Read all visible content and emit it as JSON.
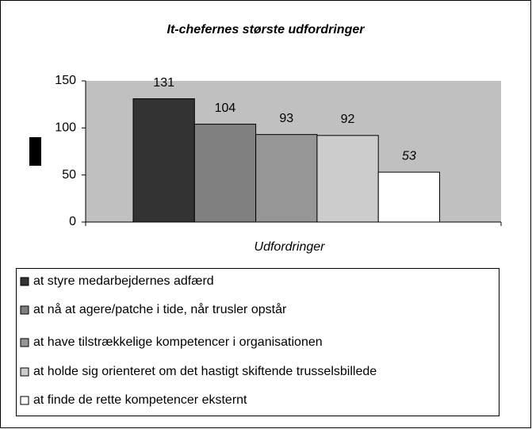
{
  "chart_data": {
    "type": "bar",
    "title": "It-chefernes største udfordringer",
    "x_label": "Udfordringer",
    "series": [
      {
        "name": "at styre medarbejdernes adfærd",
        "color": "#333333",
        "values": [
          131
        ]
      },
      {
        "name": "at nå at agere/patche i tide, når trusler opstår",
        "color": "#808080",
        "values": [
          104
        ]
      },
      {
        "name": "at have tilstrækkelige kompetencer i organisationen",
        "color": "#969696",
        "values": [
          93
        ]
      },
      {
        "name": "at holde sig orienteret om det hastigt skiftende trusselsbillede",
        "color": "#cccccc",
        "values": [
          92
        ]
      },
      {
        "name": "at finde de rette kompetencer eksternt",
        "color": "#ffffff",
        "values": [
          53
        ]
      }
    ],
    "ylim": [
      0,
      150
    ],
    "yticks": [
      0,
      50,
      100,
      150
    ],
    "plot_background": "#c0c0c0",
    "legend": "bottom"
  }
}
